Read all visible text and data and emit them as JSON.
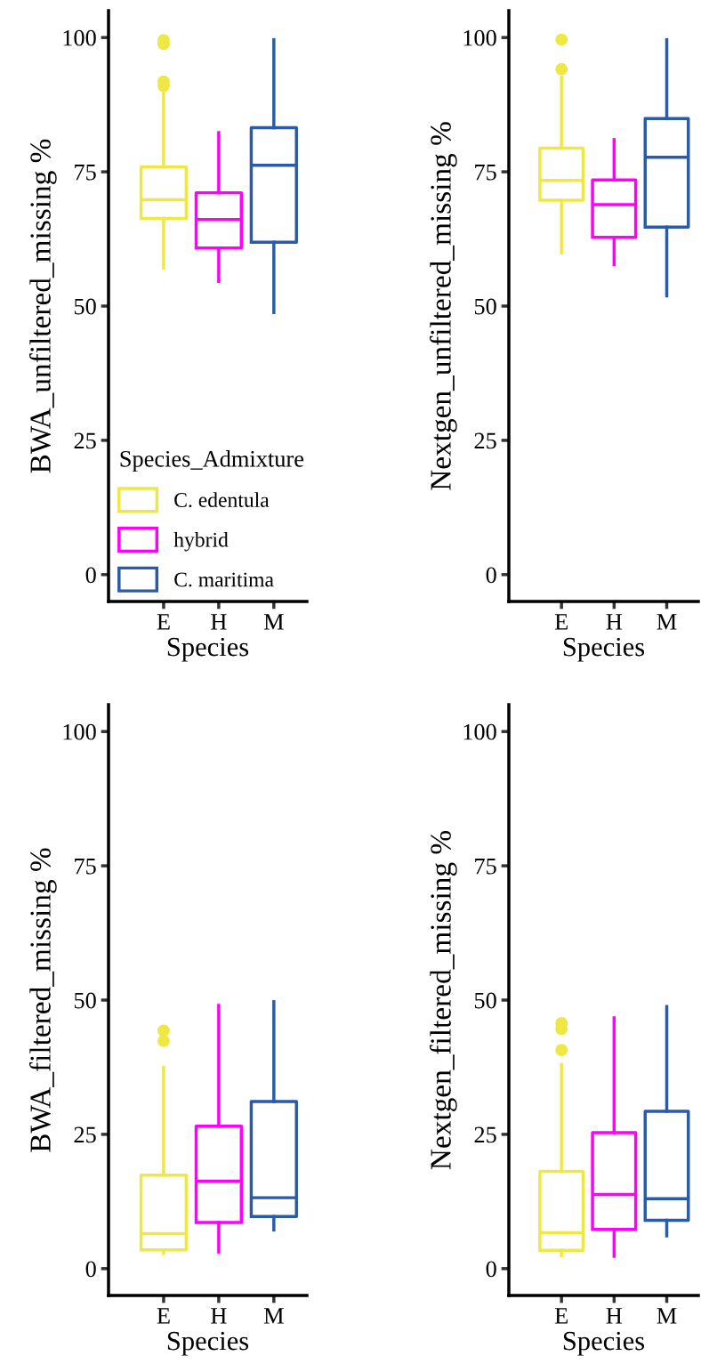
{
  "chart_data": [
    {
      "type": "box",
      "categories": [
        "E",
        "H",
        "M"
      ],
      "xlabel": "Species",
      "ylabel": "BWA_unfiltered_missing %",
      "ylim": [
        -5,
        105
      ],
      "yticks": [
        0,
        25,
        50,
        75,
        100
      ],
      "grid": false,
      "legend": "bottom left",
      "legend_title": "Species_Admixture",
      "series": [
        {
          "name": "C. edentula",
          "color": "#eee845",
          "boxes": [
            {
              "low": 57.1,
              "q1": 66.3,
              "median": 69.8,
              "q3": 75.9,
              "high": 89.6,
              "outliers": [
                91.0,
                91.8,
                98.8,
                99.5
              ]
            },
            null,
            null
          ]
        },
        {
          "name": "hybrid",
          "color": "#ff00ff",
          "boxes": [
            null,
            {
              "low": 54.6,
              "q1": 60.8,
              "median": 66.1,
              "q3": 71.1,
              "high": 82.3
            },
            null
          ]
        },
        {
          "name": "C. maritima",
          "color": "#2a5aa8",
          "boxes": [
            null,
            null,
            {
              "low": 48.8,
              "q1": 61.9,
              "median": 76.2,
              "q3": 83.2,
              "high": 99.6
            }
          ]
        }
      ]
    },
    {
      "type": "box",
      "categories": [
        "E",
        "H",
        "M"
      ],
      "xlabel": "Species",
      "ylabel": "Nextgen_unfiltered_missing %",
      "ylim": [
        -5,
        105
      ],
      "yticks": [
        0,
        25,
        50,
        75,
        100
      ],
      "grid": false,
      "series": [
        {
          "color": "#eee845",
          "boxes": [
            {
              "low": 59.9,
              "q1": 69.7,
              "median": 73.4,
              "q3": 79.4,
              "high": 92.6,
              "outliers": [
                94.1,
                99.6
              ]
            },
            null,
            null
          ]
        },
        {
          "color": "#ff00ff",
          "boxes": [
            null,
            {
              "low": 57.7,
              "q1": 62.8,
              "median": 68.9,
              "q3": 73.5,
              "high": 81.0
            },
            null
          ]
        },
        {
          "color": "#2a5aa8",
          "boxes": [
            null,
            null,
            {
              "low": 51.9,
              "q1": 64.7,
              "median": 77.7,
              "q3": 84.9,
              "high": 99.6
            }
          ]
        }
      ]
    },
    {
      "type": "box",
      "categories": [
        "E",
        "H",
        "M"
      ],
      "xlabel": "Species",
      "ylabel": "BWA_filtered_missing %",
      "ylim": [
        -5,
        105
      ],
      "yticks": [
        0,
        25,
        50,
        75,
        100
      ],
      "grid": false,
      "series": [
        {
          "color": "#eee845",
          "boxes": [
            {
              "low": 2.8,
              "q1": 3.5,
              "median": 6.5,
              "q3": 17.4,
              "high": 37.5,
              "outliers": [
                42.4,
                44.3
              ]
            },
            null,
            null
          ]
        },
        {
          "color": "#ff00ff",
          "boxes": [
            null,
            {
              "low": 3.1,
              "q1": 8.6,
              "median": 16.3,
              "q3": 26.5,
              "high": 49.0
            },
            null
          ]
        },
        {
          "color": "#2a5aa8",
          "boxes": [
            null,
            null,
            {
              "low": 7.2,
              "q1": 9.7,
              "median": 13.2,
              "q3": 31.1,
              "high": 49.7
            }
          ]
        }
      ]
    },
    {
      "type": "box",
      "categories": [
        "E",
        "H",
        "M"
      ],
      "xlabel": "Species",
      "ylabel": "Nextgen_filtered_missing %",
      "ylim": [
        -5,
        105
      ],
      "yticks": [
        0,
        25,
        50,
        75,
        100
      ],
      "grid": false,
      "series": [
        {
          "color": "#eee845",
          "boxes": [
            {
              "low": 2.4,
              "q1": 3.4,
              "median": 6.7,
              "q3": 18.1,
              "high": 38.0,
              "outliers": [
                40.7,
                44.6,
                45.7
              ]
            },
            null,
            null
          ]
        },
        {
          "color": "#ff00ff",
          "boxes": [
            null,
            {
              "low": 2.3,
              "q1": 7.3,
              "median": 13.8,
              "q3": 25.3,
              "high": 46.7
            },
            null
          ]
        },
        {
          "color": "#2a5aa8",
          "boxes": [
            null,
            null,
            {
              "low": 6.1,
              "q1": 9.0,
              "median": 13.0,
              "q3": 29.3,
              "high": 48.8
            }
          ]
        }
      ]
    }
  ]
}
